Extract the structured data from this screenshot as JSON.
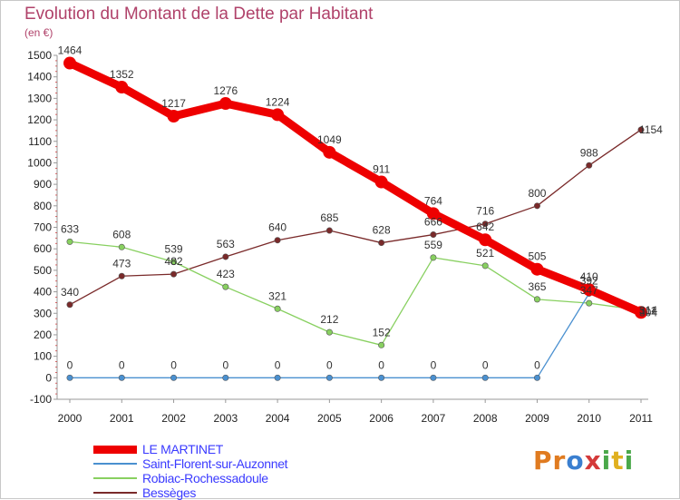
{
  "title": "Evolution du Montant de la Dette par Habitant",
  "unit_label": "(en €)",
  "logo": {
    "text": "Proxiti",
    "letters": [
      {
        "ch": "P",
        "color": "#e07b20"
      },
      {
        "ch": "r",
        "color": "#e07b20"
      },
      {
        "ch": "o",
        "color": "#3a7fd0"
      },
      {
        "ch": "x",
        "color": "#d43a3a"
      },
      {
        "ch": "i",
        "color": "#4aa84a"
      },
      {
        "ch": "t",
        "color": "#e0b020"
      },
      {
        "ch": "i",
        "color": "#4aa84a"
      }
    ]
  },
  "chart_data": {
    "type": "line",
    "title": "Evolution du Montant de la Dette par Habitant",
    "ylabel": "(en €)",
    "xlabel": "",
    "x": [
      "2000",
      "2001",
      "2002",
      "2003",
      "2004",
      "2005",
      "2006",
      "2007",
      "2008",
      "2009",
      "2010",
      "2011"
    ],
    "ylim": [
      -100,
      1500
    ],
    "yticks": [
      -100,
      0,
      100,
      200,
      300,
      400,
      500,
      600,
      700,
      800,
      900,
      1000,
      1100,
      1200,
      1300,
      1400,
      1500
    ],
    "grid": false,
    "legend_position": "bottom-left",
    "series": [
      {
        "name": "LE MARTINET",
        "color": "#ee0000",
        "values": [
          1464,
          1352,
          1217,
          1276,
          1224,
          1049,
          911,
          764,
          642,
          505,
          410,
          304
        ]
      },
      {
        "name": "Saint-Florent-sur-Auzonnet",
        "color": "#4a90d0",
        "values": [
          0,
          0,
          0,
          0,
          0,
          0,
          0,
          0,
          0,
          0,
          392,
          311
        ]
      },
      {
        "name": "Robiac-Rochessadoule",
        "color": "#88d060",
        "values": [
          633,
          608,
          539,
          423,
          321,
          212,
          152,
          559,
          521,
          365,
          347,
          314
        ]
      },
      {
        "name": "Bessèges",
        "color": "#7a2a2a",
        "values": [
          340,
          473,
          482,
          563,
          640,
          685,
          628,
          666,
          716,
          800,
          988,
          1154
        ]
      }
    ]
  }
}
